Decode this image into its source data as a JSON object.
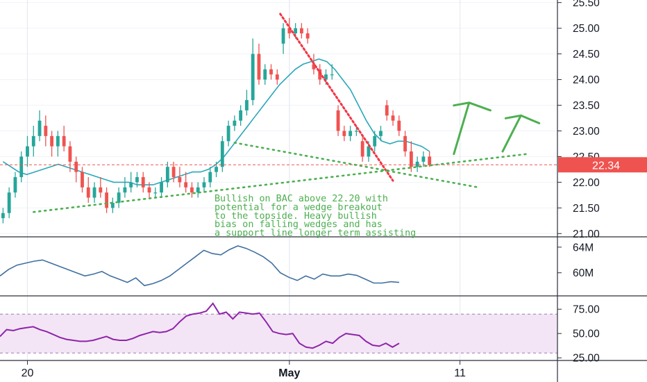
{
  "chart_data": {
    "type": "candlestick",
    "price_axis": {
      "ticks": [
        "25.50",
        "25.00",
        "24.50",
        "24.00",
        "23.50",
        "23.00",
        "22.50",
        "22.00",
        "21.50",
        "21.00"
      ],
      "tick_values": [
        25.5,
        25.0,
        24.5,
        24.0,
        23.5,
        23.0,
        22.5,
        22.0,
        21.5,
        21.0
      ],
      "ylim": [
        20.95,
        25.55
      ],
      "last_price_label": "22.34",
      "last_price": 22.34
    },
    "volume_axis": {
      "ticks": [
        "64M",
        "60M"
      ],
      "tick_values": [
        64,
        60
      ],
      "ylim": [
        56.5,
        65.5
      ]
    },
    "rsi_axis": {
      "ticks": [
        "75.00",
        "50.00",
        "25.00"
      ],
      "tick_values": [
        75,
        50,
        25
      ],
      "ylim": [
        23,
        88
      ],
      "band": [
        30,
        70
      ]
    },
    "x_axis": {
      "ticks": [
        "20",
        "May",
        "11"
      ],
      "tick_index": [
        4,
        47,
        75
      ],
      "xlim": [
        -0.5,
        91
      ]
    },
    "candles": [
      [
        21.3,
        21.5,
        21.2,
        21.4
      ],
      [
        21.4,
        21.9,
        21.3,
        21.8
      ],
      [
        21.8,
        22.2,
        21.7,
        22.1
      ],
      [
        22.1,
        22.6,
        22.0,
        22.5
      ],
      [
        22.5,
        22.9,
        22.3,
        22.7
      ],
      [
        22.7,
        23.1,
        22.5,
        22.9
      ],
      [
        22.9,
        23.4,
        22.8,
        23.2
      ],
      [
        23.1,
        23.3,
        22.7,
        22.9
      ],
      [
        22.9,
        23.0,
        22.5,
        22.7
      ],
      [
        22.7,
        23.0,
        22.5,
        22.9
      ],
      [
        22.9,
        23.1,
        22.6,
        22.7
      ],
      [
        22.7,
        22.8,
        22.2,
        22.4
      ],
      [
        22.4,
        22.5,
        22.0,
        22.2
      ],
      [
        22.2,
        22.3,
        21.8,
        21.9
      ],
      [
        21.9,
        22.1,
        21.6,
        21.7
      ],
      [
        21.7,
        22.0,
        21.6,
        21.9
      ],
      [
        21.9,
        22.1,
        21.7,
        21.8
      ],
      [
        21.8,
        21.9,
        21.4,
        21.5
      ],
      [
        21.5,
        21.7,
        21.4,
        21.6
      ],
      [
        21.6,
        21.9,
        21.5,
        21.8
      ],
      [
        21.8,
        22.1,
        21.7,
        21.9
      ],
      [
        21.9,
        22.2,
        21.8,
        22.0
      ],
      [
        22.0,
        22.2,
        21.9,
        22.1
      ],
      [
        22.1,
        22.2,
        21.8,
        21.9
      ],
      [
        21.9,
        22.0,
        21.7,
        21.8
      ],
      [
        21.8,
        21.9,
        21.7,
        21.8
      ],
      [
        21.8,
        22.1,
        21.7,
        22.0
      ],
      [
        22.0,
        22.4,
        21.9,
        22.3
      ],
      [
        22.3,
        22.4,
        22.0,
        22.1
      ],
      [
        22.1,
        22.3,
        21.9,
        22.0
      ],
      [
        22.0,
        22.2,
        21.8,
        21.9
      ],
      [
        21.9,
        22.0,
        21.7,
        21.8
      ],
      [
        21.8,
        22.0,
        21.7,
        21.9
      ],
      [
        21.9,
        22.1,
        21.8,
        22.0
      ],
      [
        22.0,
        22.3,
        21.9,
        22.2
      ],
      [
        22.2,
        22.4,
        22.1,
        22.3
      ],
      [
        22.3,
        22.9,
        22.2,
        22.8
      ],
      [
        22.8,
        23.2,
        22.7,
        23.1
      ],
      [
        23.1,
        23.3,
        23.0,
        23.2
      ],
      [
        23.2,
        23.5,
        23.1,
        23.4
      ],
      [
        23.4,
        23.8,
        23.3,
        23.6
      ],
      [
        23.6,
        24.8,
        23.5,
        24.5
      ],
      [
        24.5,
        24.7,
        23.9,
        24.0
      ],
      [
        24.0,
        24.3,
        23.9,
        24.2
      ],
      [
        24.2,
        24.3,
        24.0,
        24.1
      ],
      [
        24.1,
        24.2,
        23.9,
        24.0
      ],
      [
        24.7,
        25.1,
        24.5,
        25.0
      ],
      [
        25.0,
        25.2,
        24.8,
        24.9
      ],
      [
        24.9,
        25.1,
        24.8,
        25.0
      ],
      [
        25.0,
        25.1,
        24.8,
        24.9
      ],
      [
        24.9,
        25.0,
        24.7,
        24.8
      ],
      [
        24.3,
        24.5,
        24.1,
        24.2
      ],
      [
        24.2,
        24.3,
        23.9,
        24.0
      ],
      [
        24.0,
        24.2,
        23.9,
        24.1
      ],
      [
        24.1,
        24.3,
        24.0,
        24.1
      ],
      [
        23.4,
        23.5,
        22.9,
        23.0
      ],
      [
        23.0,
        23.1,
        22.8,
        22.9
      ],
      [
        22.9,
        23.1,
        22.8,
        23.0
      ],
      [
        23.0,
        23.1,
        22.9,
        23.0
      ],
      [
        22.8,
        22.9,
        22.4,
        22.5
      ],
      [
        22.5,
        22.8,
        22.4,
        22.7
      ],
      [
        22.7,
        23.0,
        22.6,
        22.9
      ],
      [
        22.9,
        23.1,
        22.8,
        23.0
      ],
      [
        23.5,
        23.6,
        23.2,
        23.3
      ],
      [
        23.3,
        23.4,
        23.1,
        23.2
      ],
      [
        23.2,
        23.3,
        22.9,
        23.0
      ],
      [
        22.9,
        23.0,
        22.5,
        22.6
      ],
      [
        22.6,
        22.8,
        22.2,
        22.3
      ],
      [
        22.3,
        22.5,
        22.2,
        22.4
      ],
      [
        22.4,
        22.6,
        22.3,
        22.5
      ],
      [
        22.5,
        22.6,
        22.3,
        22.34
      ]
    ],
    "candle_positions": [
      0,
      1,
      2,
      3,
      4,
      5,
      6,
      7,
      8,
      9,
      10,
      11,
      12,
      13,
      14,
      15,
      16,
      17,
      18,
      19,
      20,
      21,
      22,
      23,
      24,
      25,
      26,
      27,
      28,
      29,
      30,
      31,
      32,
      33,
      34,
      35,
      36,
      37,
      38,
      39,
      40,
      41,
      42,
      43,
      44,
      45,
      46,
      47,
      48,
      49,
      50,
      51,
      52,
      53,
      54,
      55,
      56,
      57,
      58,
      59,
      60,
      61,
      62,
      63,
      64,
      65,
      66,
      67,
      68,
      69,
      70
    ],
    "ma_line": [
      22.4,
      22.3,
      22.2,
      22.15,
      22.2,
      22.25,
      22.3,
      22.35,
      22.3,
      22.25,
      22.2,
      22.15,
      22.1,
      22.05,
      22.0,
      22.0,
      22.0,
      21.95,
      21.95,
      21.95,
      22.0,
      22.05,
      22.1,
      22.15,
      22.2,
      22.2,
      22.25,
      22.35,
      22.5,
      22.7,
      22.9,
      23.1,
      23.3,
      23.5,
      23.7,
      23.9,
      24.05,
      24.2,
      24.3,
      24.35,
      24.4,
      24.35,
      24.2,
      24.0,
      23.8,
      23.5,
      23.2,
      22.95,
      22.8,
      22.75,
      22.8,
      22.8,
      22.75,
      22.7,
      22.6
    ],
    "volume_line": [
      59.5,
      60.5,
      61.2,
      61.5,
      61.8,
      62.0,
      61.5,
      61.0,
      60.5,
      60.0,
      59.5,
      59.8,
      60.2,
      59.5,
      59.0,
      58.5,
      59.2,
      58.0,
      58.3,
      58.8,
      59.5,
      60.5,
      61.5,
      62.5,
      63.5,
      63.0,
      62.8,
      63.6,
      64.2,
      63.8,
      63.2,
      62.5,
      61.5,
      60.0,
      59.3,
      58.8,
      59.5,
      59.0,
      59.8,
      59.5,
      59.5,
      59.8,
      59.6,
      59.0,
      58.4,
      58.4,
      58.6,
      58.5
    ],
    "rsi_line": [
      47,
      54,
      53,
      55,
      56,
      57,
      54,
      52,
      49,
      46,
      44,
      43,
      42,
      42,
      43,
      45,
      47,
      44,
      43,
      43,
      45,
      48,
      50,
      52,
      51,
      52,
      55,
      62,
      68,
      70,
      71,
      73,
      81,
      70,
      72,
      65,
      72,
      71,
      70,
      71,
      62,
      52,
      50,
      49,
      50,
      40,
      36,
      35,
      38,
      42,
      40,
      46,
      50,
      49,
      48,
      42,
      38,
      37,
      40,
      36,
      40
    ],
    "trend_lines": [
      {
        "name": "falling_wedge_resistance",
        "points": [
          [
            45.5,
            25.28
          ],
          [
            64,
            22.03
          ]
        ],
        "color": "#f23645",
        "style": "dotted"
      },
      {
        "name": "wedge_support_upper",
        "points": [
          [
            38,
            22.77
          ],
          [
            78,
            21.9
          ]
        ],
        "color": "#4caf50",
        "style": "dotted"
      },
      {
        "name": "long_term_support",
        "points": [
          [
            5,
            21.42
          ],
          [
            86,
            22.55
          ]
        ],
        "color": "#4caf50",
        "style": "dotted"
      }
    ],
    "arrows": [
      {
        "from": [
          74,
          22.55
        ],
        "peak": [
          76.5,
          23.55
        ],
        "to": [
          80,
          23.4
        ],
        "color": "#4caf50"
      },
      {
        "from": [
          82,
          22.6
        ],
        "peak": [
          85,
          23.3
        ],
        "to": [
          88,
          23.15
        ],
        "color": "#4caf50"
      }
    ],
    "annotations": [
      {
        "lines": [
          "Bullish on BAC above 22.20 with",
          "potential for a wedge breakout",
          "to the topside.  Heavy bullish",
          "bias on falling wedges and has",
          "a support line longer term assisting"
        ],
        "color": "#4caf50"
      }
    ],
    "colors": {
      "up": "#26a69a",
      "down": "#ef5350",
      "ma": "#2aa7b8",
      "volume": "#3f6f9f",
      "rsi": "#8e24aa",
      "rsi_band": "#f3e5f5",
      "last_price_bg": "#ef5350"
    },
    "grid": true,
    "vertical_guides": [
      4,
      47,
      75
    ]
  }
}
